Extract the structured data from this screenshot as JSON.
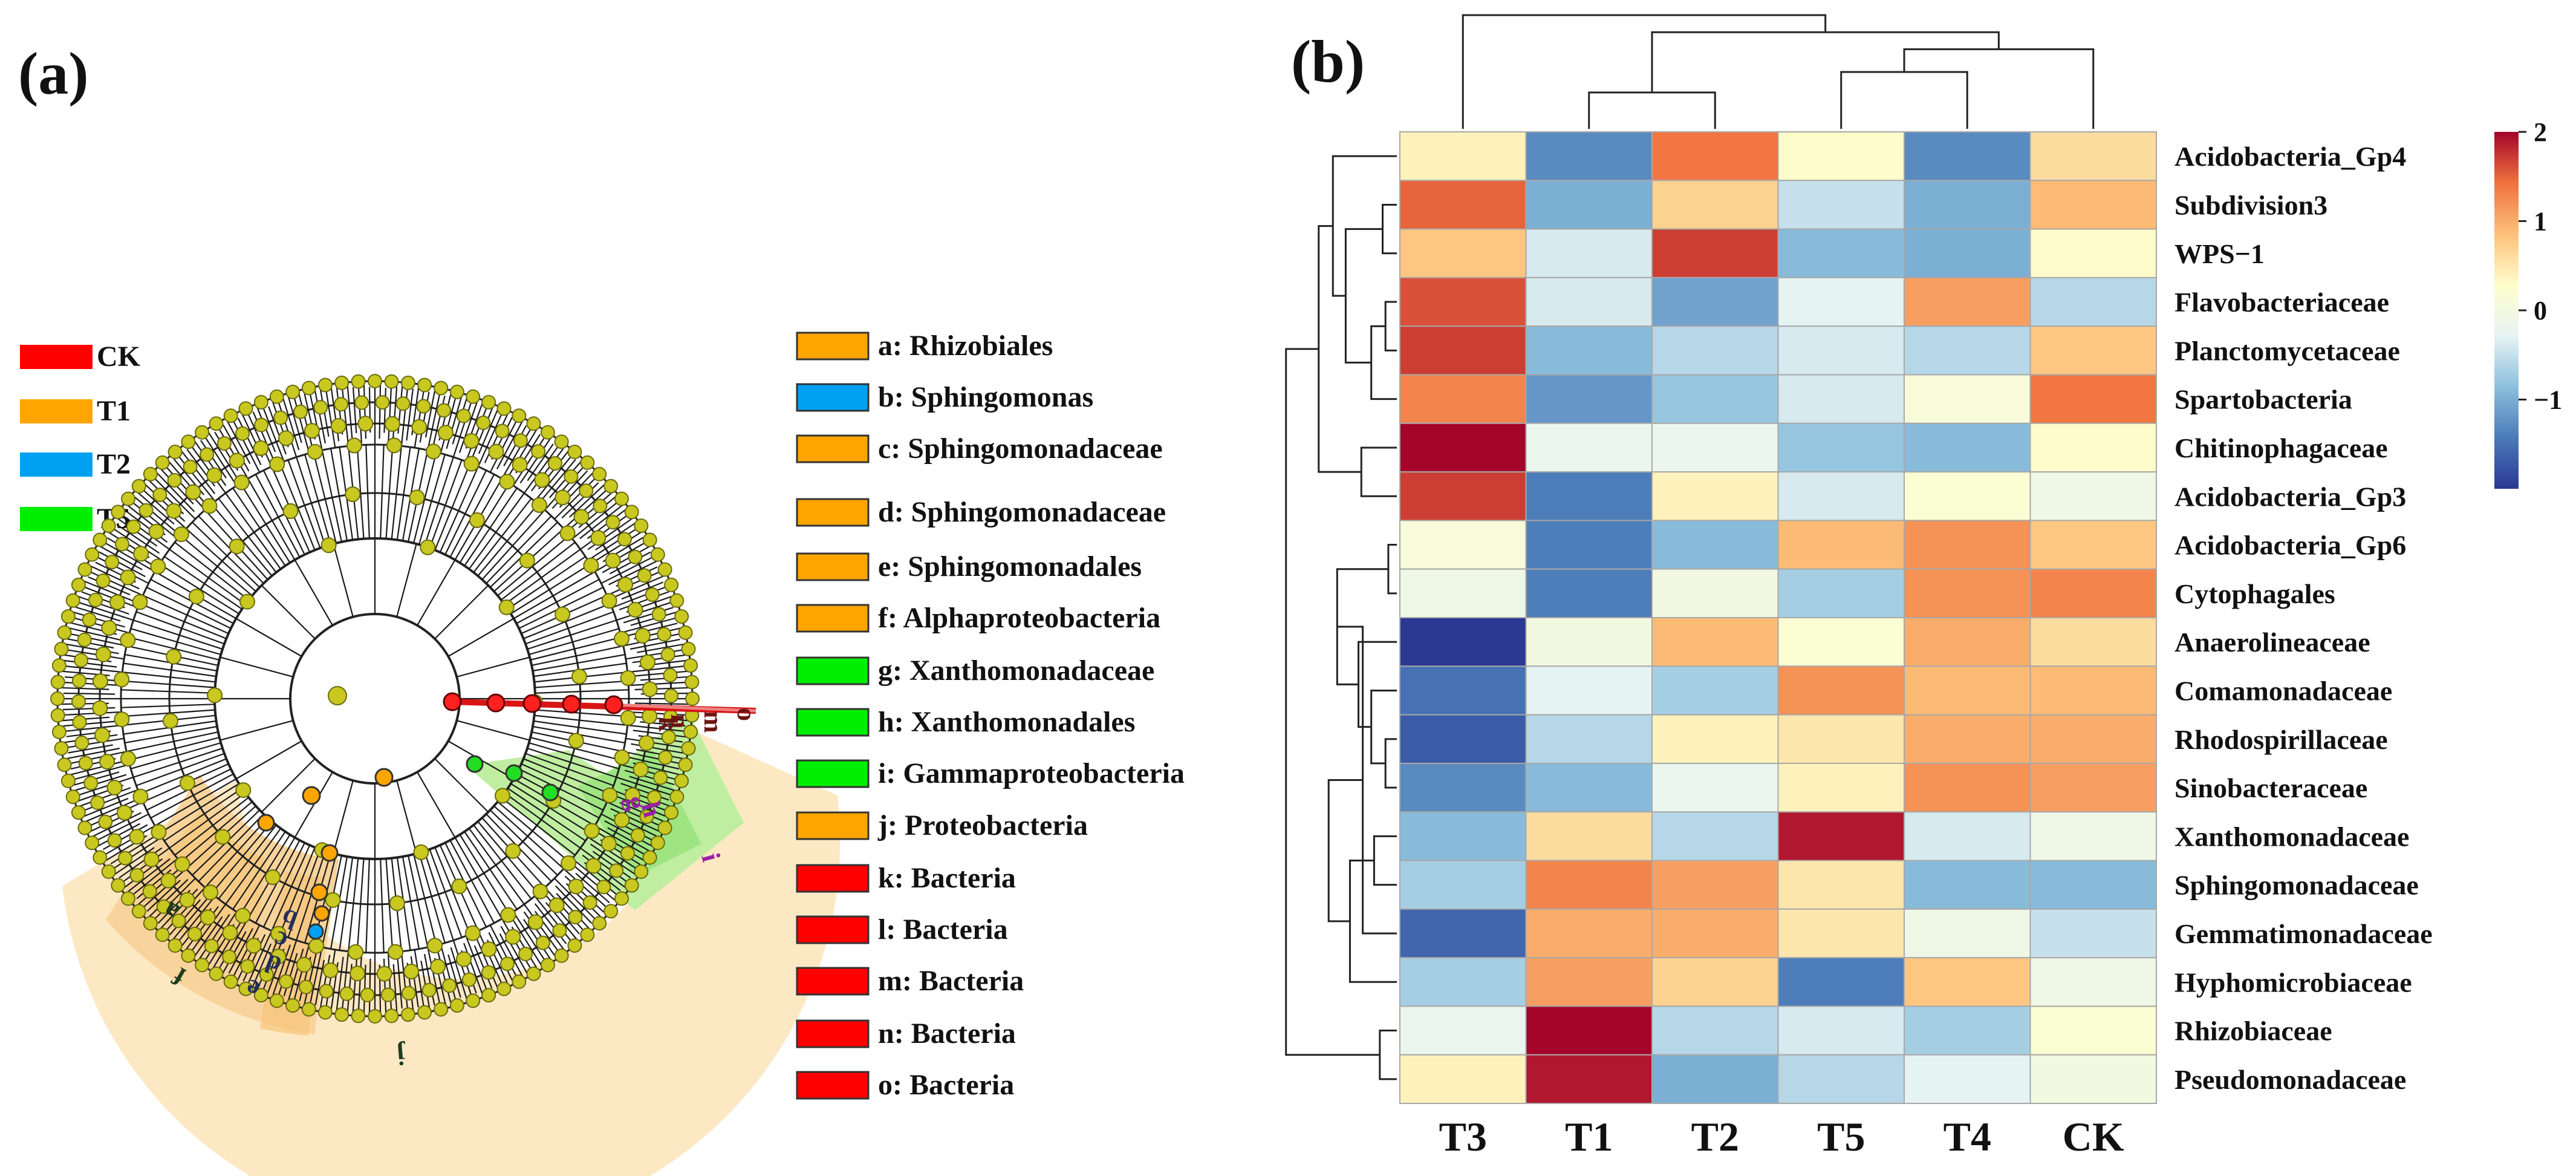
{
  "panels": {
    "a_label": "(a)",
    "b_label": "(b)"
  },
  "cladogram": {
    "groups": [
      {
        "name": "CK",
        "color": "#ff0000"
      },
      {
        "name": "T1",
        "color": "#ffa500"
      },
      {
        "name": "T2",
        "color": "#00a0f0"
      },
      {
        "name": "T5",
        "color": "#00ee00"
      }
    ],
    "taxa": [
      {
        "label": "a: Rhizobiales",
        "group": "T1",
        "color": "#ffa500"
      },
      {
        "label": "b: Sphingomonas",
        "group": "T2",
        "color": "#00a0f0"
      },
      {
        "label": "c: Sphingomonadaceae",
        "group": "T1",
        "color": "#ffa500"
      },
      {
        "label": "d: Sphingomonadaceae",
        "group": "T1",
        "color": "#ffa500"
      },
      {
        "label": "e: Sphingomonadales",
        "group": "T1",
        "color": "#ffa500"
      },
      {
        "label": "f: Alphaproteobacteria",
        "group": "T1",
        "color": "#ffa500"
      },
      {
        "label": "g: Xanthomonadaceae",
        "group": "T5",
        "color": "#00ee00"
      },
      {
        "label": "h: Xanthomonadales",
        "group": "T5",
        "color": "#00ee00"
      },
      {
        "label": "i: Gammaproteobacteria",
        "group": "T5",
        "color": "#00ee00"
      },
      {
        "label": "j: Proteobacteria",
        "group": "T1",
        "color": "#ffa500"
      },
      {
        "label": "k: Bacteria",
        "group": "CK",
        "color": "#ff0000"
      },
      {
        "label": "l: Bacteria",
        "group": "CK",
        "color": "#ff0000"
      },
      {
        "label": "m: Bacteria",
        "group": "CK",
        "color": "#ff0000"
      },
      {
        "label": "n: Bacteria",
        "group": "CK",
        "color": "#ff0000"
      },
      {
        "label": "o: Bacteria",
        "group": "CK",
        "color": "#ff0000"
      }
    ],
    "clade_letters": {
      "a": "a",
      "b": "b",
      "c": "c",
      "d": "d",
      "e": "e",
      "f": "f",
      "g": "g",
      "h": "h",
      "i": "i",
      "j": "j",
      "k": "k",
      "m": "m",
      "n": "n",
      "o": "o"
    }
  },
  "chart_data": {
    "type": "heatmap",
    "columns": [
      "T3",
      "T1",
      "T2",
      "T5",
      "T4",
      "CK"
    ],
    "rows": [
      "Acidobacteria_Gp4",
      "Subdivision3",
      "WPS−1",
      "Flavobacteriaceae",
      "Planctomycetaceae",
      "Spartobacteria",
      "Chitinophagaceae",
      "Acidobacteria_Gp3",
      "Acidobacteria_Gp6",
      "Cytophagales",
      "Anaerolineaceae",
      "Comamonadaceae",
      "Rhodospirillaceae",
      "Sinobacteraceae",
      "Xanthomonadaceae",
      "Sphingomonadaceae",
      "Gemmatimonadaceae",
      "Hyphomicrobiaceae",
      "Rhizobiaceae",
      "Pseudomonadaceae"
    ],
    "values": [
      [
        0.4,
        -1.3,
        1.4,
        0.3,
        -1.3,
        0.6
      ],
      [
        1.5,
        -1.0,
        0.7,
        -0.5,
        -1.0,
        0.9
      ],
      [
        0.8,
        -0.4,
        1.7,
        -0.9,
        -1.0,
        0.3
      ],
      [
        1.6,
        -0.4,
        -1.1,
        -0.3,
        1.1,
        -0.6
      ],
      [
        1.7,
        -0.9,
        -0.6,
        -0.4,
        -0.6,
        0.8
      ],
      [
        1.3,
        -1.2,
        -0.8,
        -0.4,
        0.1,
        1.4
      ],
      [
        2.0,
        -0.2,
        -0.2,
        -0.8,
        -0.9,
        0.3
      ],
      [
        1.7,
        -1.4,
        0.4,
        -0.4,
        0.2,
        -0.1
      ],
      [
        0.1,
        -1.4,
        -0.9,
        0.9,
        1.2,
        0.8
      ],
      [
        -0.1,
        -1.4,
        0.0,
        -0.7,
        1.2,
        1.3
      ],
      [
        -2.0,
        0.0,
        0.9,
        0.2,
        1.0,
        0.6
      ],
      [
        -1.5,
        -0.3,
        -0.7,
        1.2,
        0.9,
        0.9
      ],
      [
        -1.7,
        -0.6,
        0.4,
        0.5,
        1.0,
        1.0
      ],
      [
        -1.3,
        -0.9,
        -0.2,
        0.4,
        1.2,
        1.1
      ],
      [
        -0.9,
        0.6,
        -0.6,
        1.9,
        -0.4,
        -0.1
      ],
      [
        -0.7,
        1.3,
        1.1,
        0.5,
        -0.9,
        -0.9
      ],
      [
        -1.6,
        1.0,
        1.0,
        0.5,
        -0.1,
        -0.5
      ],
      [
        -0.7,
        1.1,
        0.7,
        -1.4,
        0.8,
        -0.1
      ],
      [
        -0.2,
        2.1,
        -0.6,
        -0.4,
        -0.7,
        0.2
      ],
      [
        0.4,
        1.9,
        -1.0,
        -0.6,
        -0.3,
        0.0
      ]
    ],
    "color_scale": {
      "min": -2,
      "max": 2,
      "stops": [
        "#2b3894",
        "#4a7ab8",
        "#8dc0dd",
        "#e8f4f4",
        "#fefecc",
        "#fdc17a",
        "#f0723e",
        "#a4042a"
      ],
      "ticks": [
        "2",
        "1",
        "0",
        "−1"
      ]
    },
    "col_dendrogram": [
      [
        1,
        2,
        0.32
      ],
      [
        3,
        4,
        0.5
      ],
      [
        7,
        5,
        0.7
      ],
      [
        8,
        6,
        0.85
      ],
      [
        0,
        9,
        1.0
      ]
    ],
    "row_dendrogram": [
      [
        1,
        2,
        0.1
      ],
      [
        3,
        4,
        0.08
      ],
      [
        21,
        5,
        0.18
      ],
      [
        20,
        22,
        0.36
      ],
      [
        0,
        23,
        0.45
      ],
      [
        6,
        7,
        0.25
      ],
      [
        24,
        25,
        0.55
      ],
      [
        8,
        9,
        0.06
      ],
      [
        12,
        13,
        0.08
      ],
      [
        11,
        28,
        0.18
      ],
      [
        10,
        29,
        0.27
      ],
      [
        27,
        30,
        0.42
      ],
      [
        14,
        15,
        0.16
      ],
      [
        31,
        16,
        0.24
      ],
      [
        32,
        17,
        0.33
      ],
      [
        18,
        19,
        0.12
      ],
      [
        33,
        34,
        0.48
      ],
      [
        26,
        35,
        0.78
      ],
      [
        36,
        36,
        0.0
      ]
    ]
  }
}
